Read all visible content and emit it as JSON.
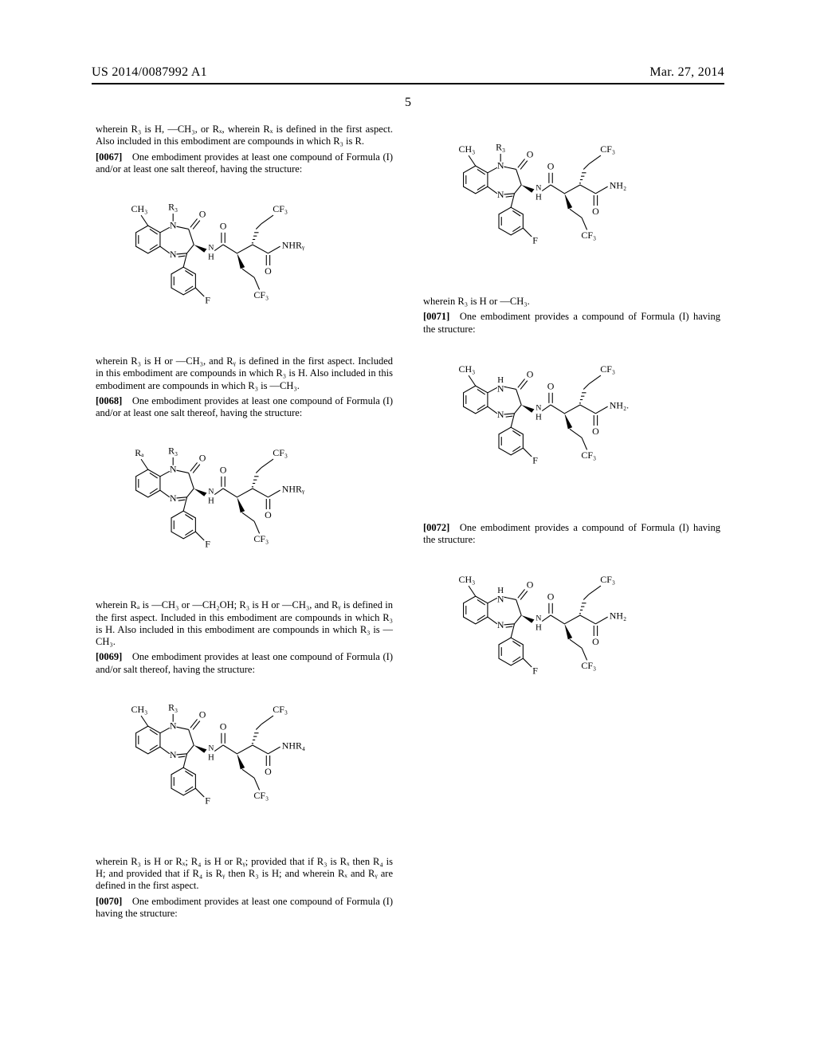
{
  "header": {
    "pub_number": "US 2014/0087992 A1",
    "date": "Mar. 27, 2014",
    "page_number": "5"
  },
  "col_left": {
    "p1": "wherein R₃ is H, —CH₃, or Rₓ, wherein Rₓ is defined in the first aspect. Also included in this embodiment are compounds in which R₃ is R.",
    "p2_num": "[0067]",
    "p2": " One embodiment provides at least one compound of Formula (I) and/or at least one salt thereof, having the structure:",
    "p3": "wherein R₃ is H or —CH₃, and Rᵧ is defined in the first aspect. Included in this embodiment are compounds in which R₃ is H. Also included in this embodiment are compounds in which R₃ is —CH₃.",
    "p4_num": "[0068]",
    "p4": " One embodiment provides at least one compound of Formula (I) and/or at least one salt thereof, having the structure:",
    "p5": "wherein Rₐ is —CH₃ or —CH₂OH; R₃ is H or —CH₃, and Rᵧ is defined in the first aspect. Included in this embodiment are compounds in which R₃ is H. Also included in this embodiment are compounds in which R₃ is —CH₃.",
    "p6_num": "[0069]",
    "p6": " One embodiment provides at least one compound of Formula (I) and/or salt thereof, having the structure:"
  },
  "col_right": {
    "p1": "wherein R₃ is H or Rₓ; R₄ is H or Rᵧ; provided that if R₃ is Rₓ then R₄ is H; and provided that if R₄ is Rᵧ then R₃ is H; and wherein Rₓ and Rᵧ are defined in the first aspect.",
    "p2_num": "[0070]",
    "p2": " One embodiment provides at least one compound of Formula (I) having the structure:",
    "p3": "wherein R₃ is H or —CH₃.",
    "p4_num": "[0071]",
    "p4": " One embodiment provides a compound of Formula (I) having the structure:",
    "p5_num": "[0072]",
    "p5": " One embodiment provides a compound of Formula (I) having the structure:"
  },
  "structures": {
    "fig1": {
      "Ra": "CH₃",
      "R3": "R₃",
      "amide": "NHRᵧ",
      "n_label": "N"
    },
    "fig2": {
      "Ra": "Rₐ",
      "R3": "R₃",
      "amide": "NHRᵧ",
      "n_label": "N"
    },
    "fig3": {
      "Ra": "CH₃",
      "R3": "R₃",
      "amide": "NHR₄",
      "n_label": "N"
    },
    "fig4": {
      "Ra": "CH₃",
      "R3": "R₃",
      "amide": "NH₂",
      "n_label": "N"
    },
    "fig5": {
      "Ra": "CH₃",
      "R3": "",
      "amide": "NH₂.",
      "n_label": "H\nN"
    },
    "fig6": {
      "Ra": "CH₃",
      "R3": "",
      "amide": "NH₂",
      "n_label": "H\nN"
    }
  },
  "common": {
    "cf3_top": "CF₃",
    "cf3_bot": "CF₃",
    "o_top": "O",
    "o_mid": "O",
    "o_right": "O",
    "nh_bridge": "N\nH",
    "n_imine": "N",
    "f_label": "F"
  },
  "style": {
    "stroke": "#000000",
    "stroke_width": 1.0,
    "font_family": "Times New Roman",
    "label_fontsize": 11,
    "sub_fontsize": 8.5
  }
}
